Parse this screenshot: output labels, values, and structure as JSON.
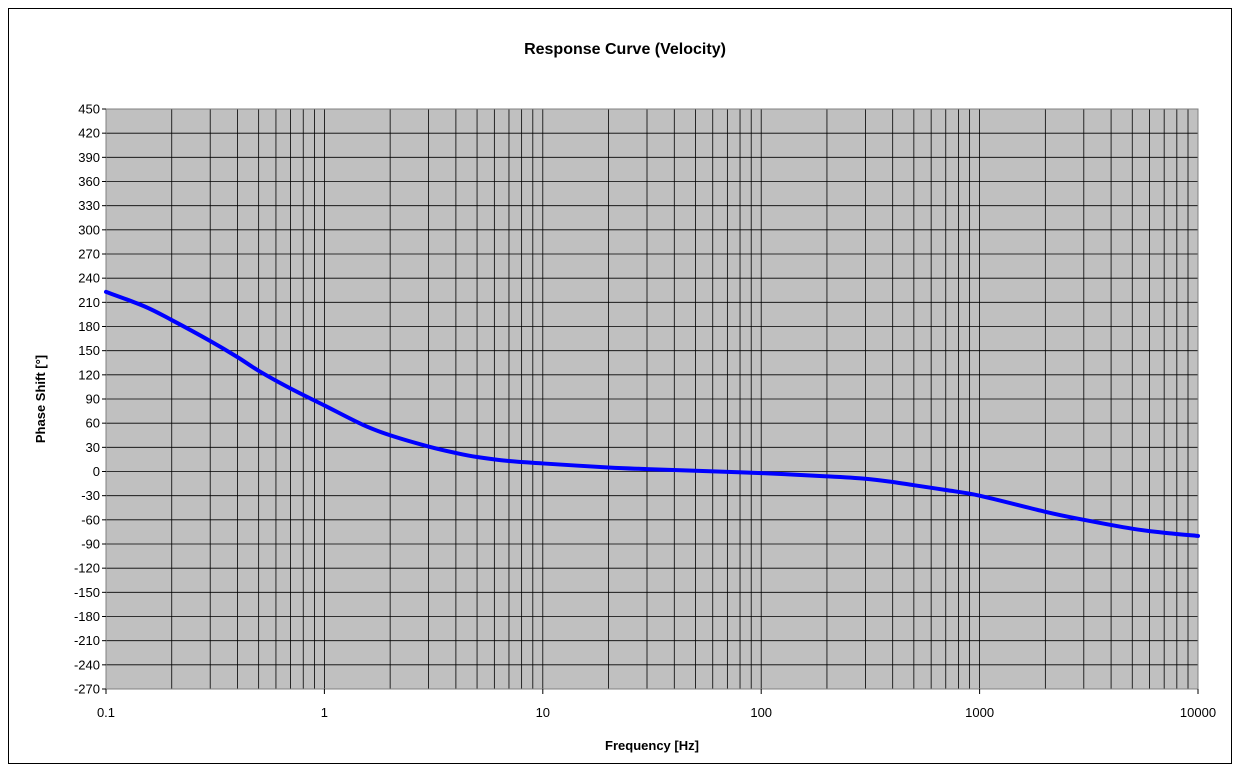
{
  "chart_data": {
    "type": "line",
    "title": "Response Curve (Velocity)",
    "xlabel": "Frequency [Hz]",
    "ylabel": "Phase Shift [°]",
    "x_scale": "log",
    "xlim": [
      0.1,
      10000
    ],
    "ylim": [
      -270,
      450
    ],
    "x_tick_labels": [
      "0.1",
      "1",
      "10",
      "100",
      "1000",
      "10000"
    ],
    "y_tick_labels": [
      "450",
      "420",
      "390",
      "360",
      "330",
      "300",
      "270",
      "240",
      "210",
      "180",
      "150",
      "120",
      "90",
      "60",
      "30",
      "0",
      "-30",
      "-60",
      "-90",
      "-120",
      "-150",
      "-180",
      "-210",
      "-240",
      "-270"
    ],
    "grid": true,
    "plot_background": "#c0c0c0",
    "series": [
      {
        "color": "#0000ff",
        "x": [
          0.1,
          0.15,
          0.2,
          0.3,
          0.4,
          0.5,
          0.7,
          1,
          1.5,
          2,
          3,
          4,
          5,
          7,
          10,
          20,
          30,
          50,
          100,
          200,
          300,
          400,
          500,
          700,
          1000,
          2000,
          3000,
          5000,
          7000,
          10000
        ],
        "values": [
          223,
          205,
          188,
          162,
          142,
          125,
          103,
          82,
          58,
          45,
          31,
          23,
          18,
          13,
          10,
          5,
          3,
          1,
          -2,
          -6,
          -9,
          -13,
          -17,
          -23,
          -30,
          -50,
          -60,
          -71,
          -76,
          -80
        ]
      }
    ]
  }
}
